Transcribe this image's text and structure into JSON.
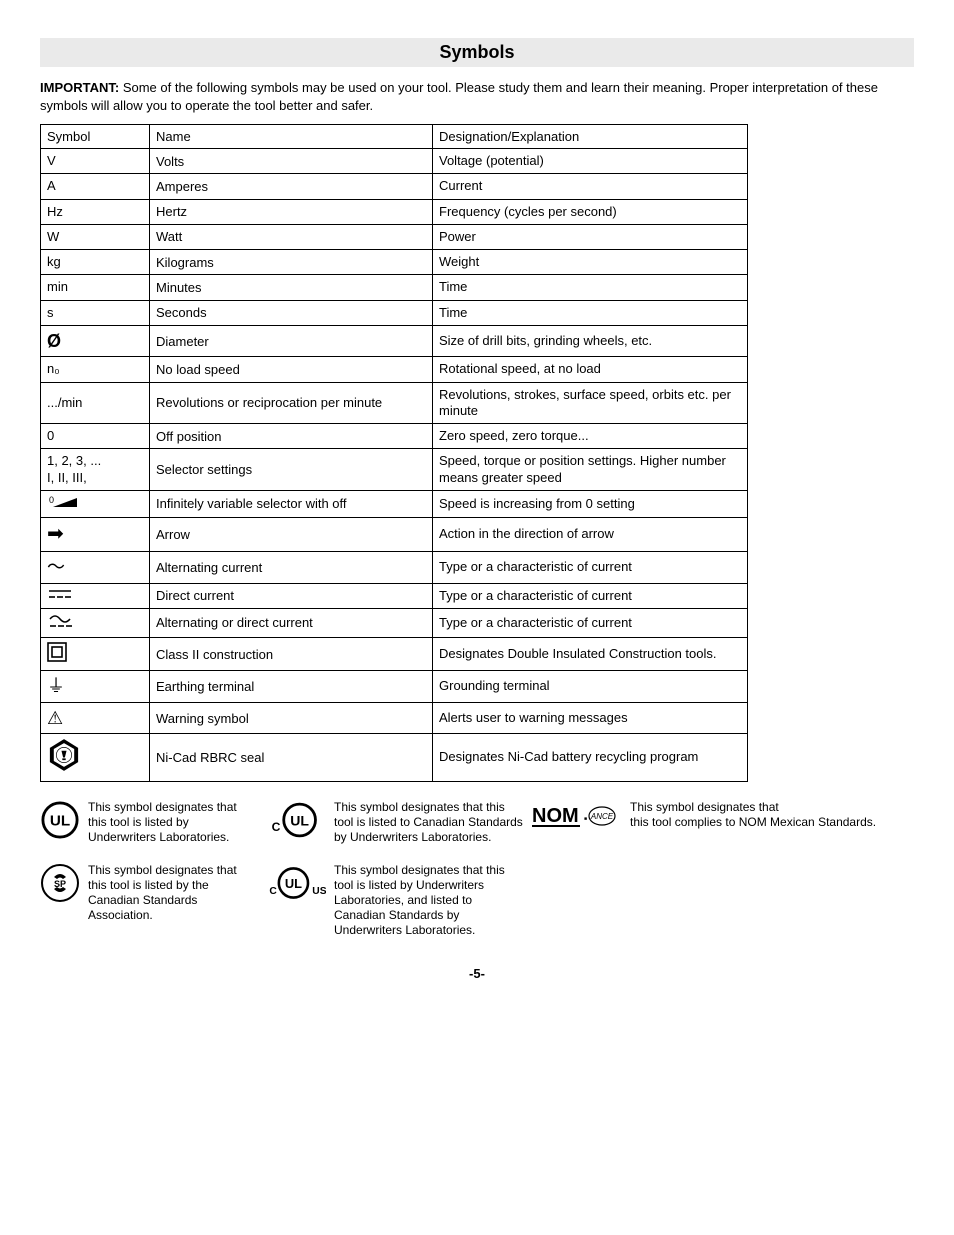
{
  "page": {
    "title": "Symbols",
    "intro_strong": "IMPORTANT:",
    "intro_text": " Some of the following symbols may be used on your tool.  Please study them and learn their meaning.  Proper interpretation of these symbols will allow you to operate the tool better and safer.",
    "page_number": "-5-"
  },
  "table": {
    "headers": {
      "symbol": "Symbol",
      "name": "Name",
      "desc": "Designation/Explanation"
    },
    "rows": [
      {
        "sym": "V",
        "name": "Volts",
        "desc": "Voltage (potential)"
      },
      {
        "sym": "A",
        "name": "Amperes",
        "desc": "Current"
      },
      {
        "sym": "Hz",
        "name": "Hertz",
        "desc": "Frequency (cycles per second)"
      },
      {
        "sym": "W",
        "name": "Watt",
        "desc": "Power"
      },
      {
        "sym": "kg",
        "name": "Kilograms",
        "desc": "Weight"
      },
      {
        "sym": "min",
        "name": "Minutes",
        "desc": "Time"
      },
      {
        "sym": "s",
        "name": "Seconds",
        "desc": "Time"
      },
      {
        "sym": "Ø",
        "name": "Diameter",
        "desc": "Size of drill bits, grinding wheels,  etc.",
        "bold": true,
        "size": 18
      },
      {
        "sym": "n₀",
        "name": "No load speed",
        "desc": "Rotational speed, at no load"
      },
      {
        "sym": ".../min",
        "name": "Revolutions or reciprocation per minute",
        "desc": "Revolutions, strokes, surface speed, orbits etc. per minute"
      },
      {
        "sym": "0",
        "name": "Off position",
        "desc": "Zero speed, zero torque..."
      },
      {
        "sym": "1, 2, 3, ...\nI, II, III,",
        "name": "Selector settings",
        "desc": "Speed, torque or position settings. Higher number means greater speed"
      },
      {
        "sym_svg": "variable",
        "name": "Infinitely variable selector with off",
        "desc": "Speed is increasing from 0 setting"
      },
      {
        "sym": "➡",
        "name": "Arrow",
        "desc": "Action in the direction of arrow",
        "size": 20
      },
      {
        "sym": "〜",
        "name": "Alternating current",
        "desc": "Type or a characteristic of current",
        "size": 18
      },
      {
        "sym_svg": "dc",
        "name": "Direct current",
        "desc": "Type or a characteristic of current"
      },
      {
        "sym_svg": "acdc",
        "name": "Alternating or direct current",
        "desc": "Type or a characteristic of current"
      },
      {
        "sym_svg": "class2",
        "name": "Class II  construction",
        "desc": "Designates Double Insulated Construction tools."
      },
      {
        "sym": "⏚",
        "name": "Earthing terminal",
        "desc": "Grounding terminal",
        "size": 18
      },
      {
        "sym": "⚠",
        "name": "Warning symbol",
        "desc": "Alerts user to warning messages",
        "size": 18
      },
      {
        "sym_svg": "rbrc",
        "name": "Ni-Cad RBRC seal",
        "desc": "Designates Ni-Cad battery recycling program"
      }
    ]
  },
  "certs": {
    "ul": "This symbol designates that this tool is listed by Underwriters Laboratories.",
    "cul": "This symbol designates that this tool is listed to Canadian Standards by Underwriters Laboratories.",
    "csa": "This symbol designates that this tool is listed by the Canadian Standards Association.",
    "culus": "This symbol designates that this tool is listed by Underwriters Laboratories, and listed to Canadian Standards by Underwriters Laboratories.",
    "nom": "This symbol designates that\nthis tool complies to NOM Mexican Standards."
  }
}
